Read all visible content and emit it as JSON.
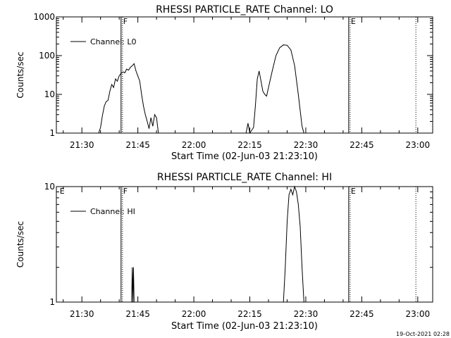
{
  "timestamp": "19-Oct-2021 02:28",
  "chart_data": [
    {
      "type": "line",
      "title": "RHESSI PARTICLE_RATE Channel: LO",
      "xlabel": "Start Time (02-Jun-03 21:23:10)",
      "ylabel": "Counts/sec",
      "yscale": "log",
      "ylim": [
        1,
        1000
      ],
      "xlim": [
        "21:23:10",
        "23:04:00"
      ],
      "x_ticks": [
        "21:30",
        "21:45",
        "22:00",
        "22:15",
        "22:30",
        "22:45",
        "23:00"
      ],
      "y_ticks": [
        "1",
        "10",
        "100",
        "1000"
      ],
      "legend": {
        "label": "Channel: L0",
        "placement": "top-left"
      },
      "markers": [
        {
          "label": "F",
          "time": "21:40:30",
          "style": "solid"
        },
        {
          "label": "E",
          "time": "22:41:30",
          "style": "solid"
        },
        {
          "label": "",
          "time": "22:59:30",
          "style": "dotted"
        }
      ],
      "series": [
        {
          "name": "Channel: L0",
          "points": [
            [
              "21:34:30",
              1
            ],
            [
              "21:35:00",
              1.4
            ],
            [
              "21:35:30",
              2.8
            ],
            [
              "21:36:00",
              5
            ],
            [
              "21:36:30",
              6.5
            ],
            [
              "21:37:00",
              7
            ],
            [
              "21:37:30",
              12
            ],
            [
              "21:38:00",
              18
            ],
            [
              "21:38:30",
              15
            ],
            [
              "21:39:00",
              25
            ],
            [
              "21:39:30",
              22
            ],
            [
              "21:40:00",
              30
            ],
            [
              "21:40:30",
              35
            ],
            [
              "21:41:00",
              38
            ],
            [
              "21:41:30",
              36
            ],
            [
              "21:42:00",
              45
            ],
            [
              "21:42:30",
              42
            ],
            [
              "21:43:00",
              50
            ],
            [
              "21:43:30",
              55
            ],
            [
              "21:44:00",
              62
            ],
            [
              "21:44:30",
              40
            ],
            [
              "21:45:00",
              30
            ],
            [
              "21:45:30",
              22
            ],
            [
              "21:46:00",
              10
            ],
            [
              "21:46:30",
              5
            ],
            [
              "21:47:00",
              3
            ],
            [
              "21:47:30",
              2
            ],
            [
              "21:48:00",
              1.3
            ],
            [
              "21:48:30",
              2.5
            ],
            [
              "21:49:00",
              1.5
            ],
            [
              "21:49:30",
              3
            ],
            [
              "21:50:00",
              2.5
            ],
            [
              "21:50:30",
              1
            ]
          ]
        },
        {
          "name": "Channel: L0",
          "points": [
            [
              "22:14:00",
              1
            ],
            [
              "22:14:30",
              1.8
            ],
            [
              "22:15:00",
              1
            ],
            [
              "22:16:00",
              1.4
            ],
            [
              "22:16:30",
              5
            ],
            [
              "22:17:00",
              25
            ],
            [
              "22:17:30",
              40
            ],
            [
              "22:18:00",
              22
            ],
            [
              "22:18:30",
              12
            ],
            [
              "22:19:00",
              10
            ],
            [
              "22:19:30",
              9
            ],
            [
              "22:20:00",
              15
            ],
            [
              "22:21:00",
              40
            ],
            [
              "22:22:00",
              100
            ],
            [
              "22:23:00",
              160
            ],
            [
              "22:24:00",
              190
            ],
            [
              "22:25:00",
              185
            ],
            [
              "22:26:00",
              140
            ],
            [
              "22:27:00",
              55
            ],
            [
              "22:28:00",
              10
            ],
            [
              "22:29:00",
              1.5
            ],
            [
              "22:29:30",
              1
            ]
          ]
        }
      ]
    },
    {
      "type": "line",
      "title": "RHESSI PARTICLE_RATE Channel: HI",
      "xlabel": "Start Time (02-Jun-03 21:23:10)",
      "ylabel": "Counts/sec",
      "yscale": "log",
      "ylim": [
        1,
        10
      ],
      "xlim": [
        "21:23:10",
        "23:04:00"
      ],
      "x_ticks": [
        "21:30",
        "21:45",
        "22:00",
        "22:15",
        "22:30",
        "22:45",
        "23:00"
      ],
      "y_ticks": [
        "1",
        "10"
      ],
      "legend": {
        "label": "Channel: HI",
        "placement": "top-left"
      },
      "markers": [
        {
          "label": "E",
          "time": "21:23:30",
          "style": "none"
        },
        {
          "label": "F",
          "time": "21:40:30",
          "style": "solid"
        },
        {
          "label": "E",
          "time": "22:41:30",
          "style": "solid"
        },
        {
          "label": "",
          "time": "22:59:30",
          "style": "dotted"
        }
      ],
      "series": [
        {
          "name": "Channel: HI",
          "points": [
            [
              "21:43:20",
              1
            ],
            [
              "21:43:30",
              2
            ],
            [
              "21:43:40",
              1
            ],
            [
              "21:43:50",
              2
            ],
            [
              "21:44:00",
              1
            ]
          ]
        },
        {
          "name": "Channel: HI",
          "points": [
            [
              "22:24:00",
              1
            ],
            [
              "22:24:30",
              2
            ],
            [
              "22:25:00",
              5
            ],
            [
              "22:25:30",
              8.5
            ],
            [
              "22:26:00",
              9.5
            ],
            [
              "22:26:30",
              8.5
            ],
            [
              "22:27:00",
              10
            ],
            [
              "22:27:30",
              9
            ],
            [
              "22:28:00",
              7
            ],
            [
              "22:28:30",
              4.5
            ],
            [
              "22:29:00",
              2
            ],
            [
              "22:29:30",
              1
            ]
          ]
        }
      ]
    }
  ]
}
